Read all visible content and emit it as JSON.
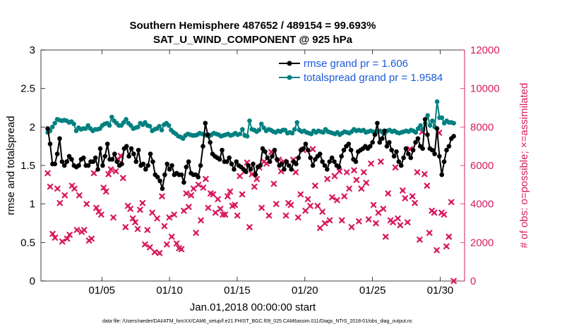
{
  "chart_data": {
    "type": "line",
    "title": "Southern Hemisphere 487652 / 489154 = 99.693%",
    "subtitle": "SAT_U_WIND_COMPONENT @ 925 hPa",
    "xlabel": "Jan.01,2018 00:00:00 start",
    "ylabel_left": "rmse and totalspread",
    "ylabel_right": "# of obs: o=possible; ×=assimilated",
    "footer": "data file: /Users/raeder/DAI/ATM_forcXX/CAM6_setup/f.e21.FHIST_BGC.f09_025.CAM6assim.011/Diags_NTrS_2018-01/obs_diag_output.nc",
    "xlim": [
      0.5,
      31.8
    ],
    "ylim_left": [
      0,
      3
    ],
    "ylim_right": [
      0,
      12000
    ],
    "x_ticks": [
      5,
      10,
      15,
      20,
      25,
      30
    ],
    "x_tick_labels": [
      "01/05",
      "01/10",
      "01/15",
      "01/20",
      "01/25",
      "01/30"
    ],
    "y_left_ticks": [
      0,
      0.5,
      1,
      1.5,
      2,
      2.5,
      3
    ],
    "y_left_tick_labels": [
      "0",
      "0.5",
      "1",
      "1.5",
      "2",
      "2.5",
      "3"
    ],
    "y_right_ticks": [
      0,
      2000,
      4000,
      6000,
      8000,
      10000,
      12000
    ],
    "y_right_tick_labels": [
      "0",
      "2000",
      "4000",
      "6000",
      "8000",
      "10000",
      "12000"
    ],
    "colors": {
      "rmse": "#000000",
      "spread": "#008080",
      "obs": "#d81b60"
    },
    "series": [
      {
        "name": "rmse grand pr = 1.606",
        "axis": "left",
        "values": [
          1.98,
          1.78,
          1.52,
          1.52,
          1.65,
          1.85,
          1.55,
          1.5,
          1.55,
          1.62,
          1.58,
          1.5,
          1.48,
          1.5,
          1.58,
          1.6,
          1.5,
          1.5,
          1.55,
          1.55,
          1.6,
          1.45,
          1.72,
          1.5,
          1.62,
          1.78,
          1.58,
          1.58,
          1.65,
          1.55,
          1.5,
          1.52,
          1.72,
          1.75,
          1.62,
          1.72,
          1.65,
          1.55,
          1.7,
          1.5,
          1.52,
          1.45,
          1.5,
          1.65,
          1.55,
          1.38,
          1.35,
          1.3,
          1.2,
          1.38,
          1.52,
          1.45,
          1.5,
          1.38,
          1.4,
          1.38,
          1.38,
          1.28,
          1.48,
          1.55,
          1.4,
          1.38,
          1.38,
          1.35,
          1.5,
          1.75,
          2.05,
          1.9,
          1.8,
          1.65,
          1.62,
          1.6,
          1.58,
          1.7,
          1.55,
          1.55,
          1.6,
          1.52,
          1.45,
          1.55,
          1.5,
          1.48,
          1.45,
          1.42,
          1.5,
          1.45,
          1.52,
          1.38,
          1.48,
          1.5,
          1.72,
          1.68,
          1.6,
          1.55,
          1.62,
          1.7,
          1.58,
          1.5,
          1.52,
          1.45,
          1.55,
          1.5,
          1.45,
          1.55,
          1.52,
          1.6,
          1.7,
          1.72,
          1.78,
          1.7,
          1.6,
          1.5,
          1.58,
          1.62,
          1.65,
          1.55,
          1.5,
          1.45,
          1.55,
          1.6,
          1.55,
          1.5,
          1.48,
          1.62,
          1.7,
          1.75,
          1.78,
          1.7,
          1.58,
          1.55,
          1.68,
          1.7,
          1.72,
          1.75,
          1.72,
          1.75,
          1.8,
          1.9,
          2.05,
          1.8,
          1.85,
          1.95,
          1.75,
          1.8,
          1.7,
          1.62,
          1.68,
          1.55,
          1.5,
          1.6,
          1.72,
          1.65,
          1.6,
          1.7,
          1.8,
          1.85,
          1.75,
          1.72,
          2.1,
          1.9,
          1.72,
          1.7,
          1.65,
          1.98,
          1.62,
          1.38,
          1.55,
          1.7,
          1.75,
          1.85,
          1.88
        ]
      },
      {
        "name": "totalspread grand pr = 1.9584",
        "axis": "left",
        "values": [
          1.93,
          1.95,
          2.0,
          2.05,
          2.1,
          2.09,
          2.08,
          2.09,
          2.08,
          2.06,
          2.07,
          2.04,
          1.95,
          1.99,
          1.97,
          1.98,
          1.98,
          2.02,
          1.98,
          1.95,
          1.97,
          1.97,
          1.98,
          2.02,
          2.04,
          2.05,
          2.02,
          2.13,
          2.08,
          2.05,
          2.02,
          2.02,
          2.06,
          2.1,
          2.05,
          2.02,
          1.98,
          1.99,
          2.0,
          2.05,
          2.03,
          2.06,
          2.02,
          2.01,
          1.95,
          1.97,
          1.98,
          2.01,
          1.96,
          2.03,
          2.05,
          2.02,
          1.96,
          1.93,
          1.91,
          1.88,
          1.87,
          1.85,
          1.89,
          1.91,
          1.9,
          1.89,
          1.89,
          1.9,
          1.92,
          1.91,
          1.9,
          1.89,
          1.88,
          1.9,
          1.92,
          1.91,
          1.9,
          1.88,
          1.89,
          1.9,
          1.91,
          1.89,
          1.9,
          1.92,
          1.9,
          1.91,
          1.97,
          1.89,
          1.88,
          2.08,
          1.97,
          1.96,
          1.94,
          1.96,
          2.04,
          1.99,
          1.95,
          1.97,
          1.96,
          1.94,
          1.93,
          1.95,
          1.94,
          1.96,
          1.96,
          1.92,
          1.93,
          1.92,
          1.97,
          2.06,
          1.96,
          1.94,
          1.95,
          1.93,
          1.92,
          1.91,
          1.95,
          1.93,
          1.95,
          1.94,
          1.93,
          1.97,
          1.94,
          1.93,
          1.92,
          1.91,
          1.93,
          1.9,
          1.92,
          1.94,
          1.93,
          1.92,
          1.94,
          1.97,
          1.95,
          1.96,
          1.95,
          1.96,
          1.93,
          1.94,
          1.95,
          1.94,
          1.93,
          1.94,
          1.95,
          1.93,
          1.92,
          1.95,
          1.96,
          1.94,
          1.95,
          1.93,
          1.92,
          1.93,
          1.94,
          1.95,
          1.94,
          1.96,
          1.95,
          1.93,
          1.98,
          2.02,
          1.97,
          2.05,
          2.15,
          2.02,
          2.08,
          2.0,
          2.33,
          2.12,
          2.12,
          2.05,
          2.08,
          2.06,
          2.06,
          2.05
        ]
      },
      {
        "name": "# of obs assimilated",
        "axis": "right",
        "values": [
          5600,
          4900,
          2450,
          2250,
          4800,
          4050,
          2050,
          4450,
          2200,
          2400,
          4950,
          4800,
          2650,
          4450,
          2550,
          2650,
          4000,
          2100,
          2200,
          5600,
          3800,
          3600,
          3450,
          4850,
          4650,
          5550,
          5800,
          3300,
          5700,
          6300,
          6500,
          5350,
          2800,
          3900,
          3750,
          3250,
          3050,
          2700,
          3700,
          4050,
          1900,
          2650,
          1750,
          3550,
          1500,
          3250,
          1450,
          4400,
          2850,
          1900,
          3300,
          2300,
          3450,
          1950,
          1700,
          1650,
          3650,
          4550,
          3850,
          4450,
          4800,
          2500,
          5000,
          3150,
          4850,
          5300,
          3800,
          4550,
          4500,
          3550,
          4250,
          3750,
          3450,
          3450,
          4400,
          4650,
          3900,
          3950,
          3400,
          5450,
          4500,
          5700,
          6150,
          2800,
          5550,
          4900,
          5300,
          5900,
          3800,
          6200,
          6100,
          3400,
          6700,
          5050,
          4000,
          6300,
          5700,
          6200,
          3400,
          4050,
          3950,
          6300,
          5650,
          3300,
          4500,
          6800,
          3650,
          4250,
          3900,
          6850,
          4950,
          3900,
          2750,
          3600,
          3000,
          5300,
          3150,
          4350,
          5450,
          4200,
          5700,
          3150,
          4400,
          5650,
          4800,
          2800,
          5750,
          5250,
          3100,
          4800,
          5650,
          5100,
          3200,
          6100,
          3950,
          3000,
          3550,
          6200,
          3750,
          2300,
          4550,
          3150,
          3050,
          5900,
          3250,
          2900,
          4700,
          4300,
          3050,
          6850,
          4400,
          4050,
          5650,
          2150,
          7750,
          5550,
          4950,
          2500,
          3650,
          3550,
          1600,
          7700,
          3550,
          3450,
          1800,
          2300,
          4100,
          0
        ]
      }
    ]
  }
}
